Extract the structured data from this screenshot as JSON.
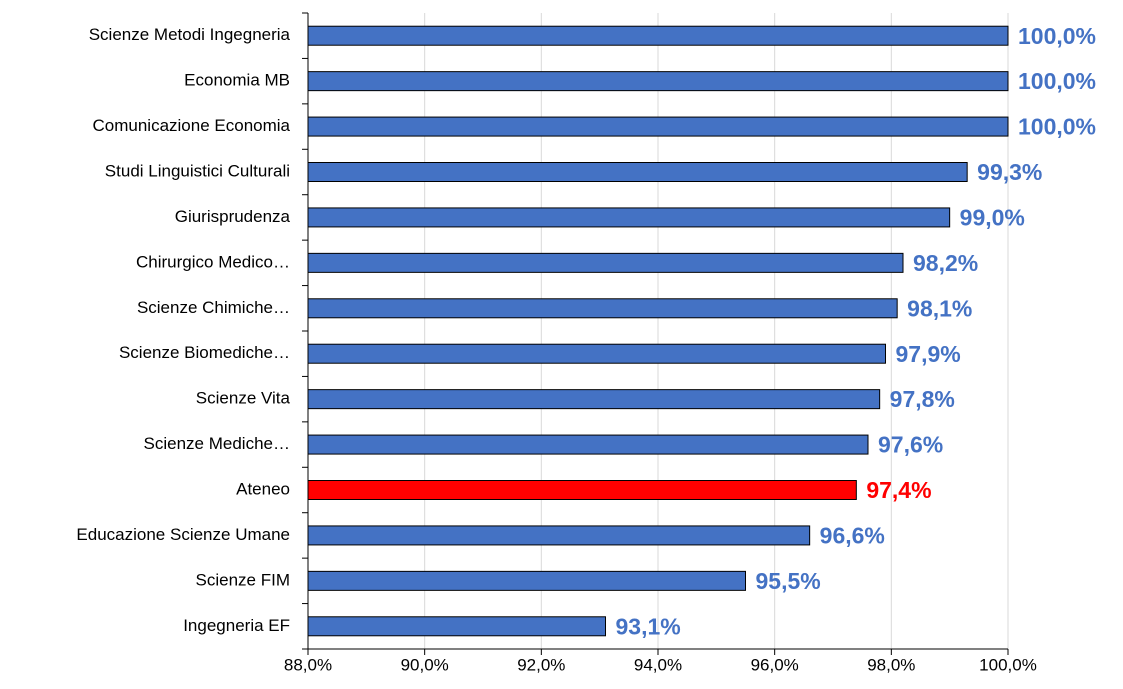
{
  "chart_data": {
    "type": "hbar",
    "categories": [
      "Scienze Metodi Ingegneria",
      "Economia MB",
      "Comunicazione Economia",
      "Studi Linguistici Culturali",
      "Giurisprudenza",
      "Chirurgico Medico…",
      "Scienze Chimiche…",
      "Scienze Biomediche…",
      "Scienze Vita",
      "Scienze Mediche…",
      "Ateneo",
      "Educazione Scienze Umane",
      "Scienze FIM",
      "Ingegneria EF"
    ],
    "values": [
      100,
      100,
      100,
      99.3,
      99.0,
      98.2,
      98.1,
      97.9,
      97.8,
      97.6,
      97.4,
      96.6,
      95.5,
      93.1
    ],
    "value_labels": [
      "100,0%",
      "100,0%",
      "100,0%",
      "99,3%",
      "99,0%",
      "98,2%",
      "98,1%",
      "97,9%",
      "97,8%",
      "97,6%",
      "97,4%",
      "96,6%",
      "95,5%",
      "93,1%"
    ],
    "colors": [
      "#4472c4",
      "#4472c4",
      "#4472c4",
      "#4472c4",
      "#4472c4",
      "#4472c4",
      "#4472c4",
      "#4472c4",
      "#4472c4",
      "#4472c4",
      "#ff0000",
      "#4472c4",
      "#4472c4",
      "#4472c4"
    ],
    "xlim": [
      88,
      100
    ],
    "xticks": [
      {
        "value": 88,
        "label": "88,0%"
      },
      {
        "value": 90,
        "label": "90,0%"
      },
      {
        "value": 92,
        "label": "92,0%"
      },
      {
        "value": 94,
        "label": "94,0%"
      },
      {
        "value": 96,
        "label": "96,0%"
      },
      {
        "value": 98,
        "label": "98,0%"
      },
      {
        "value": 100,
        "label": "100,0%"
      }
    ],
    "grid": true
  }
}
